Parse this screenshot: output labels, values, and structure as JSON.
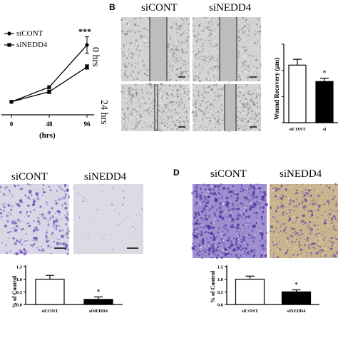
{
  "panel_labels": [
    "B",
    "D"
  ],
  "colors": {
    "bar_control_fill": "#ffffff",
    "bar_knockdown_fill": "#000000",
    "crystal_violet": "#6b4fb8",
    "scratch_gray": "#bdbdbd",
    "membrane_light": "#d9d6e6",
    "membrane_tan": "#c9b48e"
  },
  "panel_b": {
    "col_headers": [
      "siCONT",
      "siNEDD4"
    ],
    "row_labels": [
      "0 hrs",
      "24 hrs"
    ]
  },
  "panel_c": {
    "col_headers": [
      "siCONT",
      "siNEDD4"
    ]
  },
  "panel_d": {
    "col_headers": [
      "siCONT",
      "siNEDD4"
    ]
  },
  "chart_data": [
    {
      "id": "line_growth",
      "type": "line",
      "xlabel": "(hrs)",
      "ylabel": "",
      "x": [
        0,
        48,
        96
      ],
      "x_tick_labels": [
        "0",
        "48",
        "96"
      ],
      "series": [
        {
          "name": "siCONT",
          "marker": "circle",
          "values": [
            1.0,
            1.8,
            4.1
          ],
          "errors": [
            0.05,
            0.08,
            0.45
          ]
        },
        {
          "name": "siNEDD4",
          "marker": "square",
          "values": [
            1.0,
            1.55,
            2.9
          ],
          "errors": [
            0.05,
            0.1,
            0.12
          ]
        }
      ],
      "ylim": [
        0.6,
        5
      ],
      "annotation": "***",
      "legend": "top-left"
    },
    {
      "id": "wound_recovery",
      "type": "bar",
      "title": "",
      "ylabel": "Wound Recovery (μm)",
      "categories": [
        "siCONT",
        "si"
      ],
      "values": [
        440,
        315
      ],
      "errors": [
        45,
        25
      ],
      "ylim": [
        0,
        600
      ],
      "annotation": "*"
    },
    {
      "id": "invasion_c",
      "type": "bar",
      "ylabel": "% of Control",
      "categories": [
        "siCONT",
        "siNEDD4"
      ],
      "values": [
        1.0,
        0.2
      ],
      "errors": [
        0.15,
        0.1
      ],
      "ylim": [
        0,
        1.55
      ],
      "y_ticks": [
        "0.0",
        "0.5",
        "1.0",
        "1.5"
      ],
      "annotation": "*"
    },
    {
      "id": "invasion_d",
      "type": "bar",
      "ylabel": "% of Control",
      "categories": [
        "siCONT",
        "siNEDD4"
      ],
      "values": [
        1.0,
        0.5
      ],
      "errors": [
        0.12,
        0.08
      ],
      "ylim": [
        0,
        1.55
      ],
      "y_ticks": [
        "0.0",
        "0.5",
        "1.0",
        "1.5"
      ],
      "annotation": "*"
    }
  ]
}
